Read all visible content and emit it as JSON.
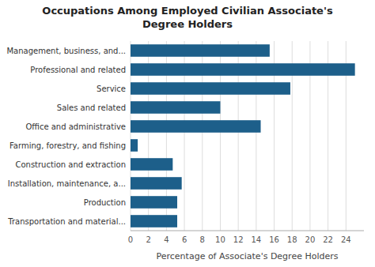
{
  "chart_data": {
    "type": "bar",
    "orientation": "horizontal",
    "title": "Occupations Among Employed Civilian Associate's\nDegree Holders",
    "xlabel": "Percentage of Associate's Degree Holders",
    "categories": [
      "Transportation and material...",
      "Production",
      "Installation, maintenance, a...",
      "Construction and extraction",
      "Farming, forestry, and fishing",
      "Office and administrative",
      "Sales and related",
      "Service",
      "Professional and related",
      "Management, business, and..."
    ],
    "values": [
      5.2,
      5.2,
      5.7,
      4.7,
      0.8,
      14.5,
      10.0,
      17.8,
      25.0,
      15.5
    ],
    "color": "#1d5f8a",
    "xlim": [
      0,
      26
    ],
    "xticks": [
      0,
      2,
      4,
      6,
      8,
      10,
      12,
      14,
      16,
      18,
      20,
      22,
      24
    ],
    "grid": true
  }
}
